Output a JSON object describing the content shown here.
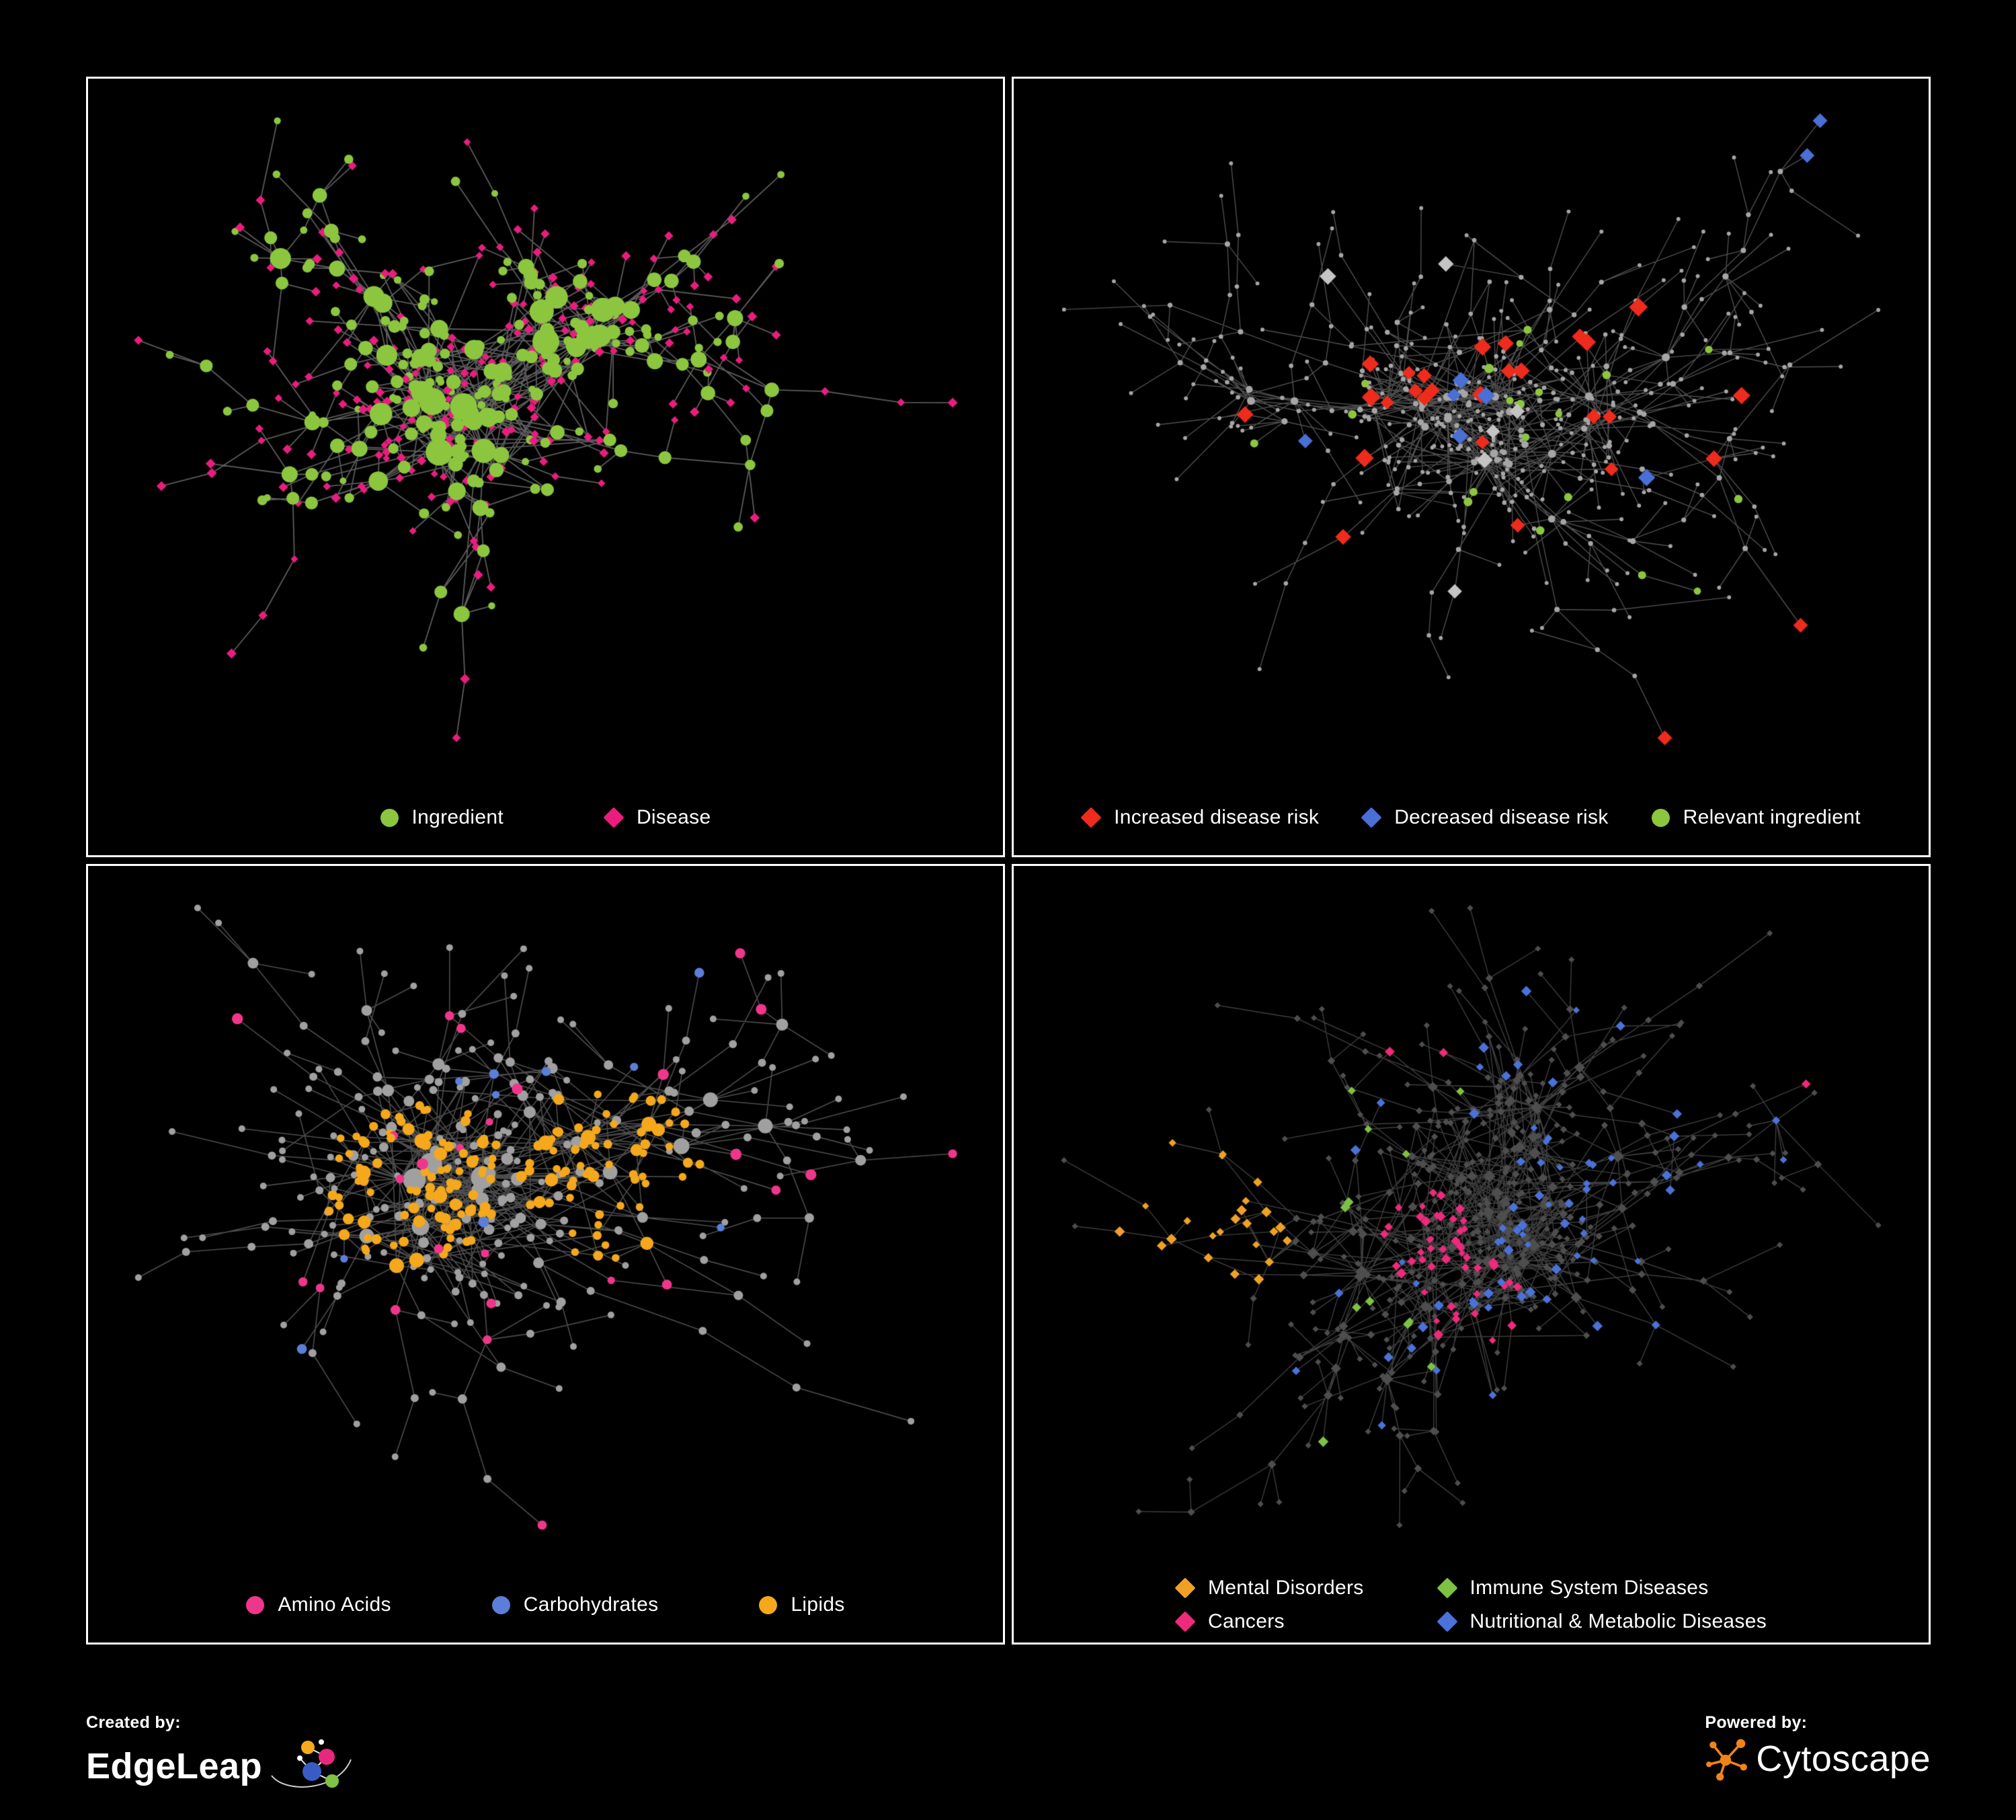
{
  "page": {
    "background": "#000000",
    "panel_border": "#ffffff"
  },
  "panels": [
    {
      "id": "ingredient-disease",
      "legend": [
        {
          "label": "Ingredient",
          "shape": "circle",
          "color": "#8CC63F"
        },
        {
          "label": "Disease",
          "shape": "diamond",
          "color": "#EA1D7F"
        }
      ],
      "network": {
        "style": "ingredient_disease",
        "seed": 42,
        "node_count": 470,
        "extra_edges": 55,
        "edge_color": "#9A9A9A",
        "edge_alpha": 0.6,
        "edge_width": 1.8,
        "colors": {
          "ingredient": "#8CC63F",
          "disease": "#EA1D7F"
        }
      }
    },
    {
      "id": "disease-risk",
      "legend": [
        {
          "label": "Increased disease risk",
          "shape": "diamond",
          "color": "#EE2B1C"
        },
        {
          "label": "Decreased disease risk",
          "shape": "diamond",
          "color": "#4A6FD6"
        },
        {
          "label": "Relevant ingredient",
          "shape": "circle",
          "color": "#8CC63F"
        }
      ],
      "network": {
        "style": "risk",
        "seed": 7,
        "node_count": 560,
        "extra_edges": 30,
        "edge_color": "#8F8F8F",
        "edge_alpha": 0.55,
        "edge_width": 1.4,
        "colors": {
          "base": "#A6A6A6",
          "increased": "#EE2B1C",
          "decreased": "#4A6FD6",
          "neutral": "#C4C4C4",
          "ingredient": "#8CC63F"
        }
      }
    },
    {
      "id": "macronutrients",
      "legend": [
        {
          "label": "Amino Acids",
          "shape": "circle",
          "color": "#F0368B"
        },
        {
          "label": "Carbohydrates",
          "shape": "circle",
          "color": "#5B7FD9"
        },
        {
          "label": "Lipids",
          "shape": "circle",
          "color": "#F5A81C"
        }
      ],
      "network": {
        "style": "macro",
        "seed": 23,
        "node_count": 470,
        "extra_edges": 80,
        "edge_color": "#9A9A9A",
        "edge_alpha": 0.5,
        "edge_width": 1.6,
        "colors": {
          "base": "#A0A0A0",
          "amino": "#F0368B",
          "carbs": "#5B7FD9",
          "lipids": "#F5A81C"
        }
      }
    },
    {
      "id": "disease-categories",
      "legend": [
        {
          "label": "Mental Disorders",
          "shape": "diamond",
          "color": "#F0A125"
        },
        {
          "label": "Immune System Diseases",
          "shape": "diamond",
          "color": "#7DC242"
        },
        {
          "label": "Cancers",
          "shape": "diamond",
          "color": "#EE2A7B"
        },
        {
          "label": "Nutritional & Metabolic Diseases",
          "shape": "diamond",
          "color": "#4A72D8"
        }
      ],
      "network": {
        "style": "categories",
        "seed": 31,
        "node_count": 620,
        "extra_edges": 100,
        "edge_color": "#8A8A8A",
        "edge_alpha": 0.45,
        "edge_width": 1.4,
        "colors": {
          "base": "#4E4E4E",
          "mental": "#F0A125",
          "immune": "#7DC242",
          "cancers": "#EE2A7B",
          "nutritional": "#4A72D8"
        }
      }
    }
  ],
  "footer": {
    "created_by_label": "Created by:",
    "created_by_name": "EdgeLeap",
    "powered_by_label": "Powered by:",
    "powered_by_name": "Cytoscape",
    "cytoscape_color": "#F08418"
  }
}
